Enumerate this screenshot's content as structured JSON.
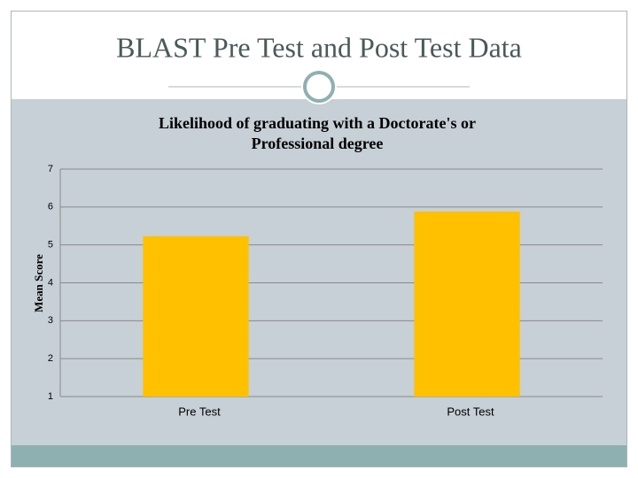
{
  "slide_title": "BLAST Pre Test and Post Test Data",
  "chart_data": {
    "type": "bar",
    "title": [
      "Likelihood of graduating with a Doctorate's or",
      "Professional degree"
    ],
    "y_label": "Mean Score",
    "categories": [
      "Pre Test",
      "Post Test"
    ],
    "values": [
      5.23,
      5.88
    ],
    "color": "#ffc000",
    "ylim": [
      1,
      7
    ],
    "yticks": [
      1,
      2,
      3,
      4,
      5,
      6,
      7
    ],
    "grid": true
  }
}
